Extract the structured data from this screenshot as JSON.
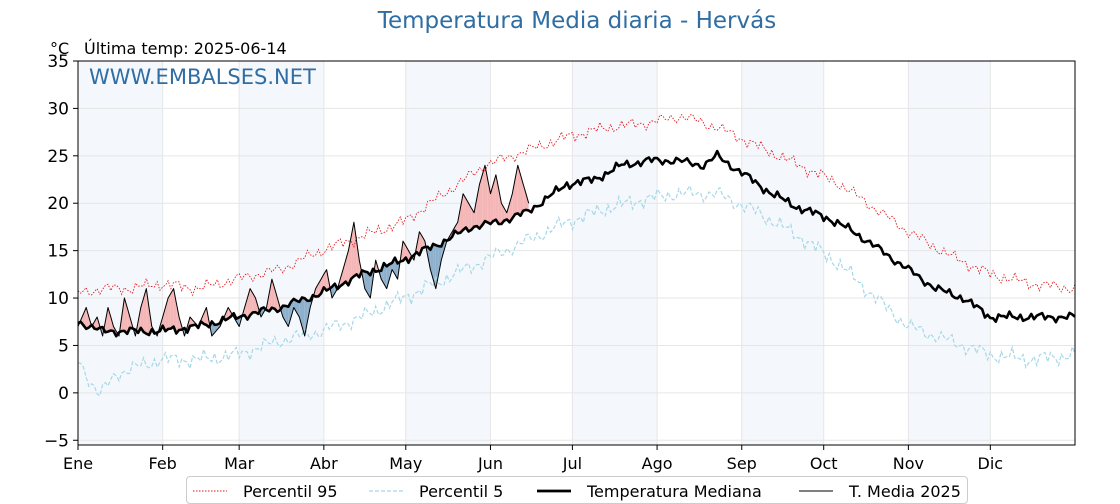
{
  "chart_data": {
    "type": "line",
    "title": "Temperatura Media diaria - Hervás",
    "unit": "°C",
    "last_temp_label": "Última temp: 2025-06-14",
    "watermark": "WWW.EMBALSES.NET",
    "ylim": [
      -5.5,
      35
    ],
    "xlim": [
      1,
      366
    ],
    "yticks": [
      35,
      30,
      25,
      20,
      15,
      10,
      5,
      0,
      -5
    ],
    "ytick_labels": [
      "35",
      "30",
      "25",
      "20",
      "15",
      "10",
      "5",
      "0",
      "−5"
    ],
    "month_labels": [
      "Ene",
      "Feb",
      "Mar",
      "Abr",
      "May",
      "Jun",
      "Jul",
      "Ago",
      "Sep",
      "Oct",
      "Nov",
      "Dic"
    ],
    "month_start_days": [
      1,
      32,
      60,
      91,
      121,
      152,
      182,
      213,
      244,
      274,
      305,
      335
    ],
    "grid": true,
    "legend_position": "bottom-center",
    "series": [
      {
        "name": "Percentil 95",
        "style": "dotted",
        "color": "#e41a1c",
        "points": [
          [
            1,
            10.5
          ],
          [
            10,
            11
          ],
          [
            20,
            11
          ],
          [
            31,
            11.5
          ],
          [
            45,
            11
          ],
          [
            59,
            12
          ],
          [
            75,
            13
          ],
          [
            90,
            15
          ],
          [
            105,
            16.5
          ],
          [
            120,
            18
          ],
          [
            135,
            21
          ],
          [
            150,
            24
          ],
          [
            165,
            25.5
          ],
          [
            180,
            27
          ],
          [
            195,
            28
          ],
          [
            210,
            28.5
          ],
          [
            222,
            29.2
          ],
          [
            235,
            28
          ],
          [
            250,
            26
          ],
          [
            265,
            24
          ],
          [
            280,
            22
          ],
          [
            295,
            19
          ],
          [
            305,
            17
          ],
          [
            320,
            14.5
          ],
          [
            335,
            12.5
          ],
          [
            350,
            11.5
          ],
          [
            366,
            11
          ]
        ]
      },
      {
        "name": "Percentil 5",
        "style": "dashed",
        "color": "#a6d8e8",
        "points": [
          [
            1,
            3.5
          ],
          [
            6,
            1
          ],
          [
            9,
            -0.2
          ],
          [
            15,
            2
          ],
          [
            31,
            3.5
          ],
          [
            45,
            3.5
          ],
          [
            59,
            4
          ],
          [
            75,
            5.5
          ],
          [
            90,
            6.5
          ],
          [
            105,
            8
          ],
          [
            120,
            10
          ],
          [
            135,
            12
          ],
          [
            150,
            14
          ],
          [
            165,
            16
          ],
          [
            180,
            18
          ],
          [
            195,
            19.5
          ],
          [
            210,
            20.5
          ],
          [
            220,
            21
          ],
          [
            235,
            21
          ],
          [
            250,
            19
          ],
          [
            265,
            16.5
          ],
          [
            280,
            13.5
          ],
          [
            295,
            9.5
          ],
          [
            305,
            7
          ],
          [
            320,
            5.5
          ],
          [
            335,
            4
          ],
          [
            350,
            3.5
          ],
          [
            366,
            4
          ]
        ]
      },
      {
        "name": "Temperatura Mediana",
        "style": "solid-thick",
        "color": "#000000",
        "points": [
          [
            1,
            7.5
          ],
          [
            10,
            6.5
          ],
          [
            20,
            6.5
          ],
          [
            31,
            6.5
          ],
          [
            45,
            7
          ],
          [
            59,
            8
          ],
          [
            75,
            9
          ],
          [
            90,
            10.5
          ],
          [
            105,
            12.5
          ],
          [
            120,
            14
          ],
          [
            135,
            16
          ],
          [
            145,
            17.5
          ],
          [
            155,
            18
          ],
          [
            165,
            19
          ],
          [
            180,
            22
          ],
          [
            190,
            22.5
          ],
          [
            200,
            24
          ],
          [
            210,
            24.5
          ],
          [
            220,
            24.5
          ],
          [
            230,
            24
          ],
          [
            235,
            25
          ],
          [
            245,
            23
          ],
          [
            255,
            21
          ],
          [
            265,
            19.5
          ],
          [
            275,
            18.5
          ],
          [
            285,
            17
          ],
          [
            295,
            15
          ],
          [
            305,
            13
          ],
          [
            315,
            11
          ],
          [
            325,
            10
          ],
          [
            335,
            8
          ],
          [
            350,
            8
          ],
          [
            366,
            8
          ]
        ]
      },
      {
        "name": "T. Media 2025",
        "style": "solid-thin",
        "color": "#000000",
        "points": [
          [
            1,
            7
          ],
          [
            4,
            9
          ],
          [
            6,
            7
          ],
          [
            8,
            8
          ],
          [
            10,
            6
          ],
          [
            12,
            9
          ],
          [
            14,
            7
          ],
          [
            16,
            6
          ],
          [
            18,
            10
          ],
          [
            20,
            8
          ],
          [
            22,
            6
          ],
          [
            24,
            9
          ],
          [
            26,
            11
          ],
          [
            28,
            7
          ],
          [
            30,
            6
          ],
          [
            32,
            8
          ],
          [
            34,
            10
          ],
          [
            36,
            11
          ],
          [
            38,
            8
          ],
          [
            40,
            6
          ],
          [
            42,
            8
          ],
          [
            45,
            7
          ],
          [
            48,
            9
          ],
          [
            50,
            6
          ],
          [
            53,
            7
          ],
          [
            56,
            9
          ],
          [
            58,
            8
          ],
          [
            60,
            7
          ],
          [
            62,
            9
          ],
          [
            64,
            11
          ],
          [
            66,
            10
          ],
          [
            68,
            8
          ],
          [
            70,
            9
          ],
          [
            72,
            12
          ],
          [
            74,
            10
          ],
          [
            76,
            8
          ],
          [
            78,
            7
          ],
          [
            80,
            9
          ],
          [
            82,
            8
          ],
          [
            84,
            6
          ],
          [
            86,
            9
          ],
          [
            88,
            11
          ],
          [
            90,
            12
          ],
          [
            92,
            13
          ],
          [
            94,
            10
          ],
          [
            96,
            11
          ],
          [
            98,
            13
          ],
          [
            100,
            15
          ],
          [
            102,
            18
          ],
          [
            104,
            14
          ],
          [
            106,
            11
          ],
          [
            108,
            10
          ],
          [
            110,
            14
          ],
          [
            112,
            12
          ],
          [
            114,
            11
          ],
          [
            116,
            13
          ],
          [
            118,
            12
          ],
          [
            120,
            16
          ],
          [
            122,
            15
          ],
          [
            124,
            14
          ],
          [
            126,
            17
          ],
          [
            128,
            16
          ],
          [
            130,
            13
          ],
          [
            132,
            11
          ],
          [
            134,
            14
          ],
          [
            136,
            16
          ],
          [
            138,
            17
          ],
          [
            140,
            18
          ],
          [
            142,
            21
          ],
          [
            144,
            20
          ],
          [
            146,
            19
          ],
          [
            148,
            22
          ],
          [
            150,
            24
          ],
          [
            152,
            21
          ],
          [
            154,
            23
          ],
          [
            156,
            20
          ],
          [
            158,
            19
          ],
          [
            160,
            21
          ],
          [
            162,
            24
          ],
          [
            164,
            22
          ],
          [
            166,
            20
          ]
        ]
      }
    ]
  },
  "legend": {
    "items": [
      {
        "label": "Percentil 95"
      },
      {
        "label": "Percentil 5"
      },
      {
        "label": "Temperatura Mediana"
      },
      {
        "label": "T. Media 2025"
      }
    ]
  }
}
